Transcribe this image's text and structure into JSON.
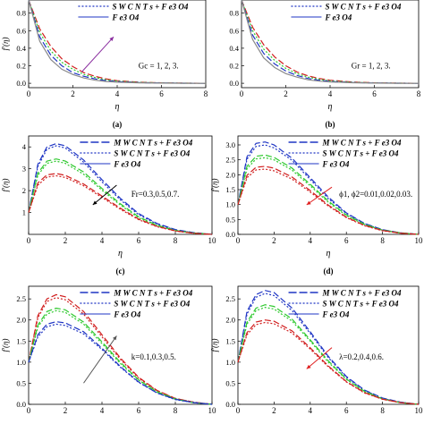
{
  "figure": {
    "colors": {
      "mwcnt": "#1f35c4",
      "swcnt": "#1f35c4",
      "fe": "#1f35c4",
      "base": "#8a8a8a",
      "red": "#d11f1f",
      "green": "#2fc92f",
      "blue": "#1f35c4",
      "arrow_up": "#8b2fa0",
      "arrow_red": "#e02020"
    },
    "legend": {
      "mwcnt": "M W C N T s + F e3 O4",
      "swcnt": "S W C N T s + F e3 O4",
      "fe": "F e3 O4"
    }
  },
  "chart_data": [
    {
      "id": "a",
      "type": "line",
      "panel_label": "(a)",
      "xlabel": "η",
      "ylabel": "f′(η)",
      "xlim": [
        0,
        8
      ],
      "ylim": [
        -0.05,
        0.95
      ],
      "xticks": [
        0,
        2,
        4,
        6,
        8
      ],
      "yticks": [
        0.0,
        0.2,
        0.4,
        0.6,
        0.8
      ],
      "annotation": "Gc = 1, 2, 3.",
      "legend": [
        "S W C N T s + F e3 O4",
        "F e3 O4"
      ],
      "arrow": "up",
      "x": [
        0,
        0.5,
        1,
        1.5,
        2,
        2.5,
        3,
        3.5,
        4,
        5,
        6,
        7,
        8
      ],
      "series": [
        {
          "color": "red",
          "values": [
            0.95,
            0.62,
            0.42,
            0.28,
            0.19,
            0.12,
            0.08,
            0.05,
            0.03,
            0.012,
            0.005,
            0.002,
            0.0
          ]
        },
        {
          "color": "green",
          "values": [
            0.95,
            0.58,
            0.37,
            0.24,
            0.16,
            0.1,
            0.065,
            0.04,
            0.025,
            0.01,
            0.004,
            0.001,
            0.0
          ]
        },
        {
          "color": "blue",
          "values": [
            0.95,
            0.53,
            0.32,
            0.2,
            0.12,
            0.08,
            0.05,
            0.03,
            0.018,
            0.007,
            0.003,
            0.001,
            0.0
          ]
        },
        {
          "color": "base",
          "values": [
            0.95,
            0.48,
            0.27,
            0.16,
            0.1,
            0.06,
            0.035,
            0.02,
            0.012,
            0.005,
            0.002,
            0.0,
            0.0
          ]
        }
      ]
    },
    {
      "id": "b",
      "type": "line",
      "panel_label": "(b)",
      "xlabel": "η",
      "ylabel": "",
      "xlim": [
        0,
        8
      ],
      "ylim": [
        -0.05,
        0.95
      ],
      "xticks": [
        0,
        2,
        4,
        6,
        8
      ],
      "yticks": [
        0.0,
        0.2,
        0.4,
        0.6,
        0.8
      ],
      "annotation": "Gr = 1, 2, 3.",
      "legend": [
        "S W C N T s + F e3 O4",
        "F e3 O4"
      ],
      "arrow": "none",
      "x": [
        0,
        0.5,
        1,
        1.5,
        2,
        2.5,
        3,
        3.5,
        4,
        5,
        6,
        7,
        8
      ],
      "series": [
        {
          "color": "red",
          "values": [
            0.95,
            0.64,
            0.44,
            0.3,
            0.2,
            0.13,
            0.085,
            0.055,
            0.035,
            0.014,
            0.005,
            0.002,
            0.0
          ]
        },
        {
          "color": "green",
          "values": [
            0.95,
            0.6,
            0.39,
            0.26,
            0.17,
            0.11,
            0.07,
            0.045,
            0.028,
            0.011,
            0.004,
            0.001,
            0.0
          ]
        },
        {
          "color": "blue",
          "values": [
            0.95,
            0.55,
            0.34,
            0.22,
            0.14,
            0.09,
            0.055,
            0.035,
            0.02,
            0.008,
            0.003,
            0.001,
            0.0
          ]
        },
        {
          "color": "base",
          "values": [
            0.95,
            0.5,
            0.29,
            0.18,
            0.11,
            0.07,
            0.04,
            0.025,
            0.015,
            0.006,
            0.002,
            0.0,
            0.0
          ]
        }
      ]
    },
    {
      "id": "c",
      "type": "line",
      "panel_label": "(c)",
      "xlabel": "η",
      "ylabel": "f′(η)",
      "xlim": [
        0,
        10
      ],
      "ylim": [
        0,
        4.5
      ],
      "xticks": [
        0,
        2,
        4,
        6,
        8,
        10
      ],
      "yticks": [
        1,
        2,
        3,
        4
      ],
      "annotation": "Fr=0.3,0.5,0.7.",
      "legend": [
        "M W C N T s + F e3 O4",
        "S W C N T s + F e3 O4",
        "F e3 O4"
      ],
      "arrow": "down-left",
      "x": [
        0,
        0.5,
        1,
        1.5,
        2,
        3,
        4,
        5,
        6,
        7,
        8,
        9,
        10
      ],
      "series": [
        {
          "color": "blue",
          "values": [
            1.0,
            3.2,
            4.0,
            4.15,
            4.05,
            3.4,
            2.5,
            1.65,
            0.95,
            0.5,
            0.22,
            0.08,
            0.0
          ]
        },
        {
          "color": "blue",
          "values": [
            1.0,
            3.1,
            3.9,
            4.05,
            3.95,
            3.3,
            2.4,
            1.58,
            0.9,
            0.47,
            0.2,
            0.07,
            0.0
          ]
        },
        {
          "color": "green",
          "values": [
            1.0,
            2.8,
            3.35,
            3.45,
            3.35,
            2.85,
            2.1,
            1.4,
            0.8,
            0.42,
            0.18,
            0.06,
            0.0
          ]
        },
        {
          "color": "green",
          "values": [
            1.0,
            2.7,
            3.25,
            3.35,
            3.25,
            2.75,
            2.02,
            1.34,
            0.76,
            0.4,
            0.17,
            0.06,
            0.0
          ]
        },
        {
          "color": "red",
          "values": [
            1.0,
            2.35,
            2.72,
            2.78,
            2.7,
            2.3,
            1.75,
            1.2,
            0.7,
            0.37,
            0.16,
            0.05,
            0.0
          ]
        },
        {
          "color": "red",
          "values": [
            1.0,
            2.25,
            2.62,
            2.68,
            2.6,
            2.22,
            1.69,
            1.15,
            0.67,
            0.35,
            0.15,
            0.05,
            0.0
          ]
        }
      ]
    },
    {
      "id": "d",
      "type": "line",
      "panel_label": "(d)",
      "xlabel": "η",
      "ylabel": "f′(η)",
      "xlim": [
        0,
        10
      ],
      "ylim": [
        0,
        3.3
      ],
      "xticks": [
        0,
        2,
        4,
        6,
        8,
        10
      ],
      "yticks": [
        0.0,
        0.5,
        1.0,
        1.5,
        2.0,
        2.5,
        3.0
      ],
      "annotation": "ϕ1, ϕ2=0.01,0.02,0.03.",
      "legend": [
        "M W C N T s + F e3 O4",
        "S W C N T s + F e3 O4",
        "F e3 O4"
      ],
      "arrow": "red-down-left",
      "x": [
        0,
        0.5,
        1,
        1.5,
        2,
        3,
        4,
        5,
        6,
        7,
        8,
        9,
        10
      ],
      "series": [
        {
          "color": "blue",
          "values": [
            1.0,
            2.6,
            3.05,
            3.1,
            3.0,
            2.55,
            1.9,
            1.25,
            0.72,
            0.37,
            0.16,
            0.05,
            0.0
          ]
        },
        {
          "color": "blue",
          "values": [
            1.0,
            2.52,
            2.95,
            3.0,
            2.9,
            2.48,
            1.84,
            1.2,
            0.7,
            0.36,
            0.15,
            0.05,
            0.0
          ]
        },
        {
          "color": "green",
          "values": [
            1.0,
            2.28,
            2.62,
            2.66,
            2.58,
            2.22,
            1.68,
            1.12,
            0.65,
            0.34,
            0.14,
            0.05,
            0.0
          ]
        },
        {
          "color": "green",
          "values": [
            1.0,
            2.2,
            2.53,
            2.57,
            2.5,
            2.15,
            1.63,
            1.08,
            0.63,
            0.33,
            0.14,
            0.04,
            0.0
          ]
        },
        {
          "color": "red",
          "values": [
            1.0,
            1.98,
            2.25,
            2.28,
            2.22,
            1.92,
            1.47,
            0.98,
            0.58,
            0.3,
            0.13,
            0.04,
            0.0
          ]
        },
        {
          "color": "red",
          "values": [
            1.0,
            1.9,
            2.16,
            2.19,
            2.13,
            1.85,
            1.42,
            0.95,
            0.56,
            0.29,
            0.12,
            0.04,
            0.0
          ]
        }
      ]
    },
    {
      "id": "e",
      "type": "line",
      "panel_label": "",
      "xlabel": "",
      "ylabel": "f′(η)",
      "xlim": [
        0,
        10
      ],
      "ylim": [
        0,
        2.8
      ],
      "xticks": [
        0,
        2,
        4,
        6,
        8,
        10
      ],
      "yticks": [
        0.0,
        0.5,
        1.0,
        1.5,
        2.0,
        2.5
      ],
      "annotation": "k=0.1,0.3,0.5.",
      "legend": [
        "M W C N T s + F e3 O4",
        "S W C N T s + F e3 O4",
        "F e3 O4"
      ],
      "arrow": "up",
      "x": [
        0,
        0.5,
        1,
        1.5,
        2,
        3,
        4,
        5,
        6,
        7,
        8,
        9,
        10
      ],
      "series": [
        {
          "color": "red",
          "values": [
            1.0,
            2.1,
            2.5,
            2.6,
            2.55,
            2.2,
            1.65,
            1.1,
            0.64,
            0.33,
            0.14,
            0.05,
            0.0
          ]
        },
        {
          "color": "red",
          "values": [
            1.0,
            2.05,
            2.44,
            2.53,
            2.48,
            2.14,
            1.6,
            1.07,
            0.62,
            0.32,
            0.14,
            0.05,
            0.0
          ]
        },
        {
          "color": "green",
          "values": [
            1.0,
            1.88,
            2.2,
            2.28,
            2.24,
            1.95,
            1.48,
            1.0,
            0.58,
            0.3,
            0.13,
            0.04,
            0.0
          ]
        },
        {
          "color": "green",
          "values": [
            1.0,
            1.83,
            2.14,
            2.22,
            2.18,
            1.9,
            1.44,
            0.97,
            0.57,
            0.29,
            0.12,
            0.04,
            0.0
          ]
        },
        {
          "color": "blue",
          "values": [
            1.0,
            1.65,
            1.9,
            1.96,
            1.93,
            1.72,
            1.33,
            0.9,
            0.53,
            0.27,
            0.12,
            0.04,
            0.0
          ]
        },
        {
          "color": "blue",
          "values": [
            1.0,
            1.6,
            1.84,
            1.9,
            1.87,
            1.67,
            1.3,
            0.88,
            0.52,
            0.27,
            0.11,
            0.04,
            0.0
          ]
        }
      ]
    },
    {
      "id": "f",
      "type": "line",
      "panel_label": "",
      "xlabel": "",
      "ylabel": "f′(η)",
      "xlim": [
        0,
        10
      ],
      "ylim": [
        0,
        2.8
      ],
      "xticks": [
        0,
        2,
        4,
        6,
        8,
        10
      ],
      "yticks": [
        0.0,
        0.5,
        1.0,
        1.5,
        2.0,
        2.5
      ],
      "annotation": "λ=0.2,0.4,0.6.",
      "legend": [
        "M W C N T s + F e3 O4",
        "S W C N T s + F e3 O4",
        "F e3 O4"
      ],
      "arrow": "red-down-left",
      "x": [
        0,
        0.5,
        1,
        1.5,
        2,
        3,
        4,
        5,
        6,
        7,
        8,
        9,
        10
      ],
      "series": [
        {
          "color": "blue",
          "values": [
            1.0,
            2.2,
            2.6,
            2.7,
            2.65,
            2.28,
            1.72,
            1.14,
            0.66,
            0.34,
            0.15,
            0.05,
            0.0
          ]
        },
        {
          "color": "blue",
          "values": [
            1.0,
            2.14,
            2.54,
            2.63,
            2.58,
            2.22,
            1.68,
            1.11,
            0.64,
            0.33,
            0.14,
            0.05,
            0.0
          ]
        },
        {
          "color": "green",
          "values": [
            1.0,
            1.95,
            2.28,
            2.36,
            2.32,
            2.02,
            1.53,
            1.03,
            0.6,
            0.31,
            0.13,
            0.04,
            0.0
          ]
        },
        {
          "color": "green",
          "values": [
            1.0,
            1.9,
            2.22,
            2.3,
            2.26,
            1.97,
            1.5,
            1.0,
            0.59,
            0.3,
            0.13,
            0.04,
            0.0
          ]
        },
        {
          "color": "red",
          "values": [
            1.0,
            1.7,
            1.95,
            2.0,
            1.97,
            1.74,
            1.34,
            0.91,
            0.54,
            0.28,
            0.12,
            0.04,
            0.0
          ]
        },
        {
          "color": "red",
          "values": [
            1.0,
            1.65,
            1.89,
            1.94,
            1.91,
            1.69,
            1.31,
            0.89,
            0.53,
            0.27,
            0.12,
            0.04,
            0.0
          ]
        }
      ]
    }
  ]
}
